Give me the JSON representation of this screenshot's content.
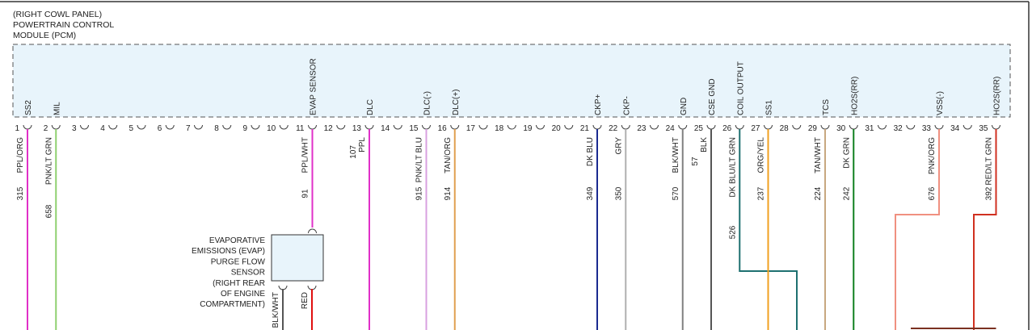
{
  "header": {
    "lines": [
      "(RIGHT COWL PANEL)",
      "POWERTRAIN CONTROL",
      "MODULE (PCM)"
    ]
  },
  "module": {
    "pins": [
      {
        "number": 1,
        "label": "SS2"
      },
      {
        "number": 2,
        "label": "MIL"
      },
      {
        "number": 3
      },
      {
        "number": 4
      },
      {
        "number": 5
      },
      {
        "number": 6
      },
      {
        "number": 7
      },
      {
        "number": 8
      },
      {
        "number": 9
      },
      {
        "number": 10
      },
      {
        "number": 11,
        "label": "EVAP SENSOR"
      },
      {
        "number": 12
      },
      {
        "number": 13,
        "label": "DLC"
      },
      {
        "number": 14
      },
      {
        "number": 15,
        "label": "DLC(-)"
      },
      {
        "number": 16,
        "label": "DLC(+)"
      },
      {
        "number": 17
      },
      {
        "number": 18
      },
      {
        "number": 19
      },
      {
        "number": 20
      },
      {
        "number": 21,
        "label": "CKP+"
      },
      {
        "number": 22,
        "label": "CKP-"
      },
      {
        "number": 23
      },
      {
        "number": 24,
        "label": "GND"
      },
      {
        "number": 25,
        "label": "CSE GND"
      },
      {
        "number": 26,
        "label": "COIL OUTPUT"
      },
      {
        "number": 27,
        "label": "SS1"
      },
      {
        "number": 28
      },
      {
        "number": 29,
        "label": "TCS"
      },
      {
        "number": 30,
        "label": "HO2S(RR)"
      },
      {
        "number": 31
      },
      {
        "number": 32
      },
      {
        "number": 33,
        "label": "VSS(-)"
      },
      {
        "number": 34
      },
      {
        "number": 35,
        "label": "HO2S(RR)"
      }
    ]
  },
  "wires": [
    {
      "pin": 1,
      "color_code": "PPL/ORG",
      "circuit": 315,
      "color": "#e030c8"
    },
    {
      "pin": 2,
      "color_code": "PNK/LT GRN",
      "circuit": 658,
      "color": "#8fd070"
    },
    {
      "pin": 11,
      "color_code": "PPL/WHT",
      "circuit": 91,
      "color": "#e030c8"
    },
    {
      "pin": 13,
      "color_code": "PPL",
      "circuit": 107,
      "color": "#e030c8"
    },
    {
      "pin": 15,
      "color_code": "PNK/LT BLU",
      "circuit": 915,
      "color": "#d8a0e0"
    },
    {
      "pin": 16,
      "color_code": "TAN/ORG",
      "circuit": 914,
      "color": "#e0a050"
    },
    {
      "pin": 21,
      "color_code": "DK BLU",
      "circuit": 349,
      "color": "#1a2a90"
    },
    {
      "pin": 22,
      "color_code": "GRY",
      "circuit": 350,
      "color": "#b0b0b0"
    },
    {
      "pin": 24,
      "color_code": "BLK/WHT",
      "circuit": 570,
      "color": "#808080"
    },
    {
      "pin": 25,
      "color_code": "BLK",
      "circuit": 57,
      "color": "#555555"
    },
    {
      "pin": 26,
      "color_code": "DK BLU/LT GRN",
      "circuit": 526,
      "color": "#1e7070"
    },
    {
      "pin": 27,
      "color_code": "ORG/YEL",
      "circuit": 237,
      "color": "#f0a020"
    },
    {
      "pin": 29,
      "color_code": "TAN/WHT",
      "circuit": 224,
      "color": "#c8a880"
    },
    {
      "pin": 30,
      "color_code": "DK GRN",
      "circuit": 242,
      "color": "#108020"
    },
    {
      "pin": 33,
      "color_code": "PNK/ORG",
      "circuit": 676,
      "color": "#f09080"
    },
    {
      "pin": 35,
      "color_code": "RED/LT GRN",
      "circuit": 392,
      "color": "#d03020"
    }
  ],
  "sensor": {
    "label_lines": [
      "EVAPORATIVE",
      "EMISSIONS (EVAP)",
      "PURGE FLOW",
      "SENSOR",
      "(RIGHT REAR",
      "OF ENGINE",
      "COMPARTMENT)"
    ],
    "wires": [
      {
        "color_code": "BLK/WHT",
        "color": "#555555"
      },
      {
        "color_code": "RED",
        "color": "#e01010"
      }
    ]
  }
}
